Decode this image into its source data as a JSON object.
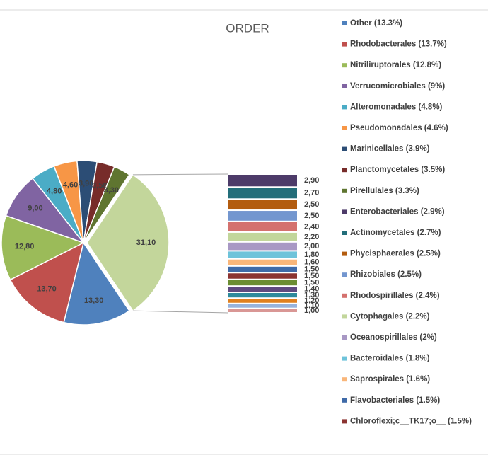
{
  "chart_data": {
    "type": "pie-of-bar",
    "title": "ORDER",
    "pie": {
      "categories": [
        "Other (13.3%)",
        "Rhodobacterales (13.7%)",
        "Nitriliruptorales (12.8%)",
        "Verrucomicrobiales (9%)",
        "Alteromonadales (4.8%)",
        "Pseudomonadales (4.6%)",
        "Marinicellales (3.9%)",
        "Planctomycetales (3.5%)",
        "Pirellulales (3.3%)",
        null
      ],
      "values": [
        13.3,
        13.7,
        12.8,
        9.0,
        4.8,
        4.6,
        3.9,
        3.5,
        3.3,
        31.1
      ],
      "value_labels": [
        "13,30",
        "13,70",
        "12,80",
        "9,00",
        "4,80",
        "4,60",
        "3,90",
        "3,50",
        "3,30",
        "31,10"
      ],
      "colors": [
        "#4f81bd",
        "#c0504d",
        "#9bbb59",
        "#8064a2",
        "#4bacc6",
        "#f79646",
        "#2c4d75",
        "#772c2a",
        "#5f7530",
        "#c3d69b"
      ]
    },
    "bar": {
      "categories": [
        "Enterobacteriales (2.9%)",
        "Actinomycetales (2.7%)",
        "Phycisphaerales (2.5%)",
        "Rhizobiales (2.5%)",
        "Rhodospirillales (2.4%)",
        "Cytophagales (2.2%)",
        "Oceanospirillales (2%)",
        "Bacteroidales (1.8%)",
        "Saprospirales (1.6%)",
        "Flavobacteriales (1.5%)",
        "Chloroflexi;c__TK17;o__ (1.5%)",
        null,
        null,
        null,
        null,
        null,
        null
      ],
      "values": [
        2.9,
        2.7,
        2.5,
        2.5,
        2.4,
        2.2,
        2.0,
        1.8,
        1.6,
        1.5,
        1.5,
        1.5,
        1.4,
        1.3,
        1.2,
        1.1,
        1.0
      ],
      "value_labels": [
        "2,90",
        "2,70",
        "2,50",
        "2,50",
        "2,40",
        "2,20",
        "2,00",
        "1,80",
        "1,60",
        "1,50",
        "1,50",
        "1,50",
        "1,40",
        "1,30",
        "1,20",
        "1,10",
        "1,00"
      ],
      "colors": [
        "#4d3b69",
        "#236e7a",
        "#b35c0f",
        "#7396cf",
        "#d4716e",
        "#c2d69b",
        "#a898c4",
        "#6ec3da",
        "#f9b67a",
        "#3f6aa8",
        "#8b3331",
        "#6b8d32",
        "#5f4a80",
        "#2d8a9c",
        "#e0801f",
        "#98b3dc",
        "#d99795"
      ]
    }
  }
}
